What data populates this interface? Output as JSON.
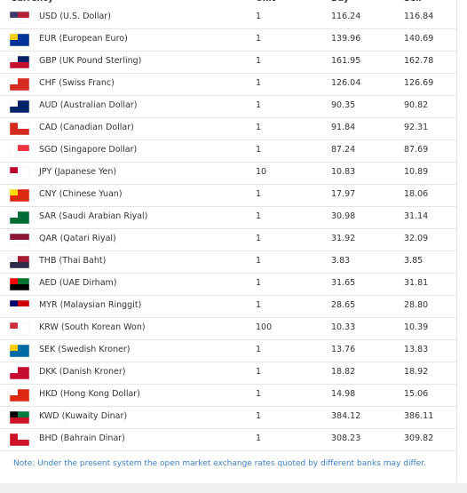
{
  "table": {
    "header": [
      "Currency",
      "Unit",
      "Buy",
      "Sell"
    ],
    "rows": [
      [
        "USD (U.S. Dollar)",
        "1",
        "116.24",
        "116.84"
      ],
      [
        "EUR (European Euro)",
        "1",
        "139.96",
        "140.69"
      ],
      [
        "GBP (UK Pound Sterling)",
        "1",
        "161.95",
        "162.78"
      ],
      [
        "CHF (Swiss Franc)",
        "1",
        "126.04",
        "126.69"
      ],
      [
        "AUD (Australian Dollar)",
        "1",
        "90.35",
        "90.82"
      ],
      [
        "CAD (Canadian Dollar)",
        "1",
        "91.84",
        "92.31"
      ],
      [
        "SGD (Singapore Dollar)",
        "1",
        "87.24",
        "87.69"
      ],
      [
        "JPY (Japanese Yen)",
        "10",
        "10.83",
        "10.89"
      ],
      [
        "CNY (Chinese Yuan)",
        "1",
        "17.97",
        "18.06"
      ],
      [
        "SAR (Saudi Arabian Riyal)",
        "1",
        "30.98",
        "31.14"
      ],
      [
        "QAR (Qatari Riyal)",
        "1",
        "31.92",
        "32.09"
      ],
      [
        "THB (Thai Baht)",
        "1",
        "3.83",
        "3.85"
      ],
      [
        "AED (UAE Dirham)",
        "1",
        "31.65",
        "31.81"
      ],
      [
        "MYR (Malaysian Ringgit)",
        "1",
        "28.65",
        "28.80"
      ],
      [
        "KRW (South Korean Won)",
        "100",
        "10.33",
        "10.39"
      ],
      [
        "SEK (Swedish Kroner)",
        "1",
        "13.76",
        "13.83"
      ],
      [
        "DKK (Danish Kroner)",
        "1",
        "18.82",
        "18.92"
      ],
      [
        "HKD (Hong Kong Dollar)",
        "1",
        "14.98",
        "15.06"
      ],
      [
        "KWD (Kuwaity Dinar)",
        "1",
        "384.12",
        "386.11"
      ],
      [
        "BHD (Bahrain Dinar)",
        "1",
        "308.23",
        "309.82"
      ]
    ]
  },
  "note": "Note: Under the present system the open market exchange rates quoted by different banks may differ."
}
